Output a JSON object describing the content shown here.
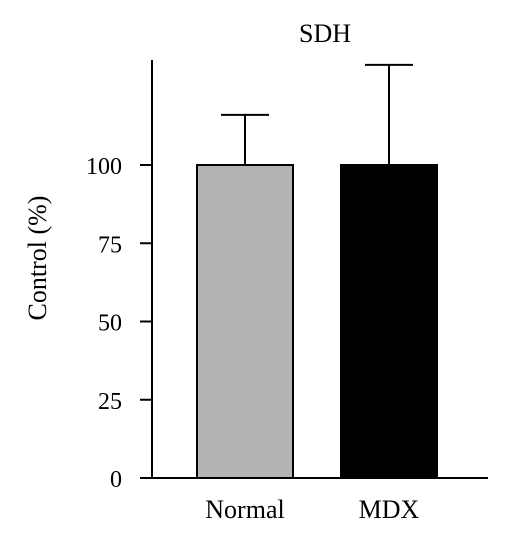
{
  "chart_data": {
    "type": "bar",
    "title": "SDH",
    "xlabel": "",
    "ylabel": "Control (%)",
    "categories": [
      "Normal",
      "MDX"
    ],
    "values": [
      100,
      100
    ],
    "error_upper": [
      116,
      132
    ],
    "colors": [
      "#b4b4b4",
      "#000000"
    ],
    "ylim": [
      0,
      132
    ],
    "yticks": [
      0,
      25,
      50,
      75,
      100
    ],
    "ytick_labels": [
      "0",
      "25",
      "50",
      "75",
      "100"
    ],
    "grid": false,
    "legend": "none"
  }
}
